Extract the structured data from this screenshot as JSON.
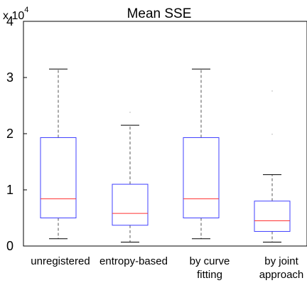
{
  "chart_data": {
    "type": "boxplot",
    "title": "Mean SSE",
    "xlabel": "",
    "ylabel": "",
    "y_multiplier": "x 10",
    "y_multiplier_exponent": "4",
    "ylim": [
      0,
      4
    ],
    "yticks": [
      "0",
      "1",
      "2",
      "3",
      "4"
    ],
    "grid": false,
    "categories": [
      [
        "unregistered"
      ],
      [
        "entropy-based"
      ],
      [
        "by curve",
        "fitting"
      ],
      [
        "by joint",
        "approach"
      ]
    ],
    "boxes": [
      {
        "whisker_low": 0.13,
        "q1": 0.5,
        "median": 0.84,
        "q3": 1.93,
        "whisker_high": 3.15,
        "outliers": []
      },
      {
        "whisker_low": 0.07,
        "q1": 0.37,
        "median": 0.58,
        "q3": 1.1,
        "whisker_high": 2.15,
        "outliers": [
          2.38
        ]
      },
      {
        "whisker_low": 0.13,
        "q1": 0.5,
        "median": 0.84,
        "q3": 1.93,
        "whisker_high": 3.15,
        "outliers": []
      },
      {
        "whisker_low": 0.07,
        "q1": 0.26,
        "median": 0.45,
        "q3": 0.8,
        "whisker_high": 1.27,
        "outliers": [
          1.99,
          2.76
        ]
      }
    ],
    "colors": {
      "box": "#4040ff",
      "median": "#ff3333",
      "whisker": "#555555",
      "axis": "#000000"
    }
  }
}
